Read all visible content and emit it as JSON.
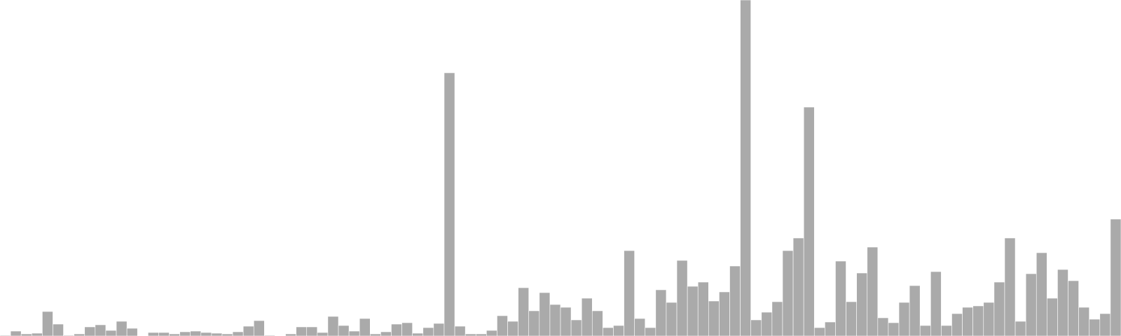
{
  "chart_data": {
    "type": "bar",
    "title": "",
    "xlabel": "",
    "ylabel": "",
    "ylim": [
      0,
      480
    ],
    "grid": false,
    "legend": "none",
    "bar_color": "#aaaaaa",
    "values": [
      1,
      7,
      3,
      4,
      35,
      17,
      1,
      3,
      13,
      16,
      8,
      21,
      11,
      0,
      5,
      5,
      3,
      6,
      7,
      5,
      4,
      3,
      6,
      14,
      22,
      1,
      0,
      3,
      13,
      13,
      5,
      28,
      15,
      7,
      25,
      3,
      6,
      17,
      19,
      4,
      12,
      18,
      376,
      14,
      3,
      3,
      8,
      29,
      21,
      69,
      36,
      62,
      45,
      41,
      23,
      54,
      36,
      12,
      15,
      122,
      25,
      12,
      66,
      48,
      108,
      71,
      77,
      50,
      63,
      100,
      480,
      23,
      34,
      49,
      122,
      140,
      327,
      12,
      20,
      107,
      49,
      90,
      127,
      26,
      19,
      48,
      72,
      15,
      92,
      15,
      32,
      41,
      43,
      48,
      77,
      140,
      21,
      89,
      119,
      54,
      95,
      79,
      41,
      24,
      32,
      167
    ]
  }
}
